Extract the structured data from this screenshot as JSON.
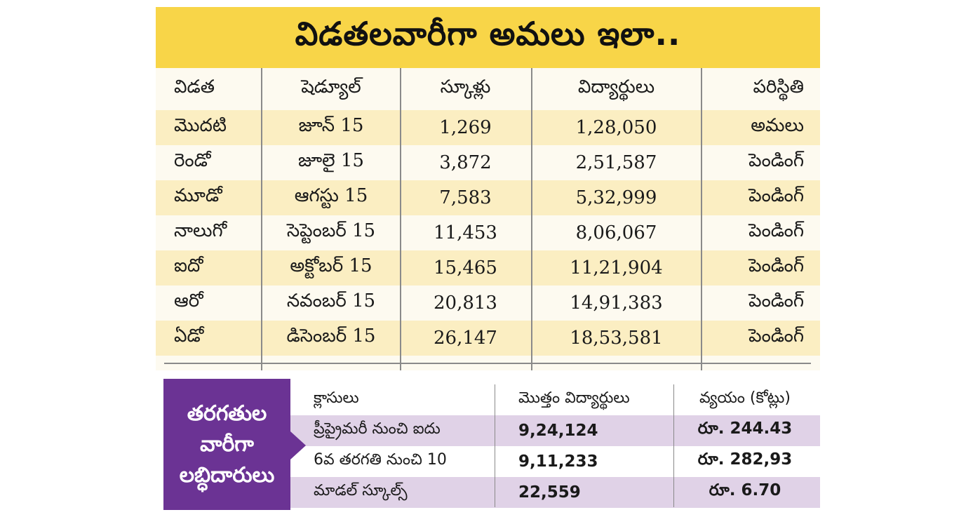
{
  "title": "విడతలవారీగా అమలు ఇలా..",
  "upper_table": {
    "headers": [
      "విడత",
      "షెడ్యూల్",
      "స్కూళ్లు",
      "విద్యార్థులు",
      "పరిస్థితి"
    ],
    "rows": [
      [
        "మొదటి",
        "జూన్ 15",
        "1,269",
        "1,28,050",
        "అమలు"
      ],
      [
        "రెండో",
        "జూలై 15",
        "3,872",
        "2,51,587",
        "పెండింగ్"
      ],
      [
        "మూడో",
        "ఆగస్టు 15",
        "7,583",
        "5,32,999",
        "పెండింగ్"
      ],
      [
        "నాలుగో",
        "సెప్టెంబర్ 15",
        "11,453",
        "8,06,067",
        "పెండింగ్"
      ],
      [
        "ఐదో",
        "అక్టోబర్ 15",
        "15,465",
        "11,21,904",
        "పెండింగ్"
      ],
      [
        "ఆరో",
        "నవంబర్ 15",
        "20,813",
        "14,91,383",
        "పెండింగ్"
      ],
      [
        "ఏడో",
        "డిసెంబర్ 15",
        "26,147",
        "18,53,581",
        "పెండింగ్"
      ]
    ]
  },
  "lower_section": {
    "label_lines": [
      "తరగతుల",
      "వారీగా",
      "లబ్ధిదారులు"
    ],
    "headers": [
      "క్లాసులు",
      "మొత్తం విద్యార్థులు",
      "వ్యయం (కోట్లు)"
    ],
    "rows": [
      [
        "ప్రీప్రైమరీ నుంచి ఐదు",
        "9,24,124",
        "రూ. 244.43"
      ],
      [
        "6వ తరగతి నుంచి 10",
        "9,11,233",
        "రూ. 282,93"
      ],
      [
        "మాడల్ స్కూల్స్",
        "22,559",
        "రూ. 6.70"
      ]
    ]
  },
  "colors": {
    "banner": "#f8d548",
    "row_tint": "#fbeec2",
    "purple": "#6b3394",
    "lavender": "#e0d2e7"
  }
}
